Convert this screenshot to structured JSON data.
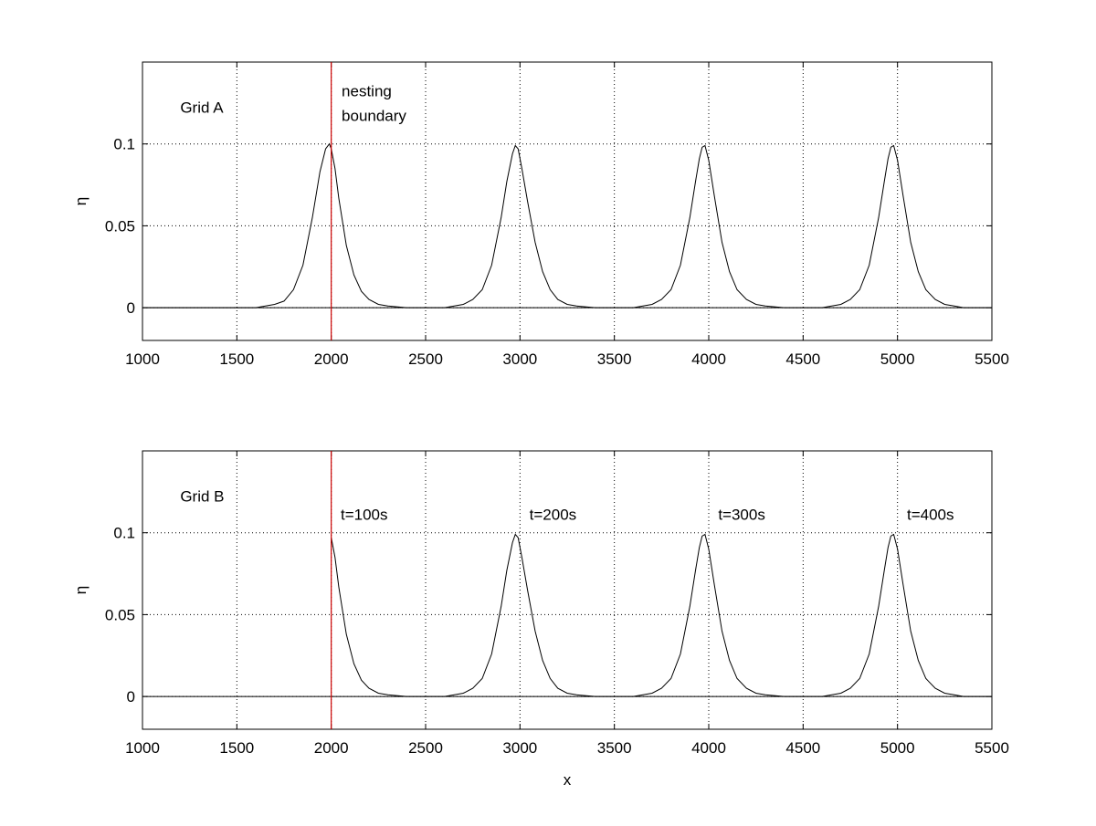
{
  "chart_data": [
    {
      "type": "line",
      "panel": "top",
      "title": "",
      "xlabel": "",
      "ylabel": "η",
      "xlim": [
        1000,
        5500
      ],
      "ylim": [
        -0.02,
        0.15
      ],
      "xticks": [
        1000,
        1500,
        2000,
        2500,
        3000,
        3500,
        4000,
        4500,
        5000,
        5500
      ],
      "xtick_labels": [
        "1000",
        "1500",
        "2000",
        "2500",
        "3000",
        "3500",
        "4000",
        "4500",
        "5000",
        "5500"
      ],
      "yticks": [
        0,
        0.05,
        0.1
      ],
      "ytick_labels": [
        "0",
        "0.05",
        "0.1"
      ],
      "grid": true,
      "line_color": "#000000",
      "boundary": {
        "x": 2000,
        "color": "#cc0000"
      },
      "annotations": [
        {
          "text": "Grid A",
          "x": 1200,
          "y": 0.119
        },
        {
          "text": "nesting",
          "x": 2055,
          "y": 0.129
        },
        {
          "text": "boundary",
          "x": 2055,
          "y": 0.114
        }
      ],
      "series": [
        {
          "x": [
            1000,
            1600,
            1700,
            1750,
            1800,
            1850,
            1900,
            1940,
            1970,
            1990,
            2000,
            2020,
            2040,
            2080,
            2120,
            2160,
            2200,
            2250,
            2300,
            2400,
            2600,
            2700,
            2750,
            2800,
            2850,
            2900,
            2930,
            2960,
            2975,
            2990,
            3010,
            3040,
            3080,
            3120,
            3160,
            3200,
            3250,
            3300,
            3400,
            3600,
            3700,
            3750,
            3800,
            3850,
            3900,
            3930,
            3950,
            3965,
            3980,
            4000,
            4030,
            4070,
            4110,
            4150,
            4200,
            4250,
            4300,
            4400,
            4600,
            4700,
            4750,
            4800,
            4850,
            4900,
            4930,
            4950,
            4965,
            4980,
            5000,
            5030,
            5070,
            5110,
            5150,
            5200,
            5250,
            5300,
            5350,
            5500
          ],
          "y": [
            0,
            0,
            0.002,
            0.004,
            0.011,
            0.026,
            0.055,
            0.083,
            0.097,
            0.1,
            0.097,
            0.085,
            0.067,
            0.038,
            0.02,
            0.01,
            0.005,
            0.002,
            0.001,
            0,
            0,
            0.002,
            0.005,
            0.011,
            0.026,
            0.055,
            0.077,
            0.094,
            0.099,
            0.097,
            0.085,
            0.065,
            0.04,
            0.022,
            0.011,
            0.005,
            0.002,
            0.001,
            0,
            0,
            0.002,
            0.005,
            0.011,
            0.026,
            0.055,
            0.077,
            0.091,
            0.098,
            0.099,
            0.09,
            0.068,
            0.04,
            0.022,
            0.011,
            0.005,
            0.002,
            0.001,
            0,
            0,
            0.002,
            0.005,
            0.011,
            0.026,
            0.055,
            0.077,
            0.091,
            0.098,
            0.099,
            0.09,
            0.068,
            0.04,
            0.022,
            0.011,
            0.005,
            0.002,
            0.001,
            0,
            0
          ]
        }
      ]
    },
    {
      "type": "line",
      "panel": "bottom",
      "title": "",
      "xlabel": "x",
      "ylabel": "η",
      "xlim": [
        1000,
        5500
      ],
      "ylim": [
        -0.02,
        0.15
      ],
      "xticks": [
        1000,
        1500,
        2000,
        2500,
        3000,
        3500,
        4000,
        4500,
        5000,
        5500
      ],
      "xtick_labels": [
        "1000",
        "1500",
        "2000",
        "2500",
        "3000",
        "3500",
        "4000",
        "4500",
        "5000",
        "5500"
      ],
      "yticks": [
        0,
        0.05,
        0.1
      ],
      "ytick_labels": [
        "0",
        "0.05",
        "0.1"
      ],
      "grid": true,
      "line_color": "#000000",
      "boundary": {
        "x": 2000,
        "color": "#cc0000"
      },
      "annotations": [
        {
          "text": "Grid B",
          "x": 1200,
          "y": 0.119
        },
        {
          "text": "t=100s",
          "x": 2050,
          "y": 0.108
        },
        {
          "text": "t=200s",
          "x": 3050,
          "y": 0.108
        },
        {
          "text": "t=300s",
          "x": 4050,
          "y": 0.108
        },
        {
          "text": "t=400s",
          "x": 5050,
          "y": 0.108
        }
      ],
      "series": [
        {
          "x": [
            2000,
            2020,
            2040,
            2080,
            2120,
            2160,
            2200,
            2250,
            2300,
            2400,
            2600,
            2700,
            2750,
            2800,
            2850,
            2900,
            2930,
            2960,
            2975,
            2990,
            3010,
            3040,
            3080,
            3120,
            3160,
            3200,
            3250,
            3300,
            3400,
            3600,
            3700,
            3750,
            3800,
            3850,
            3900,
            3930,
            3950,
            3965,
            3980,
            4000,
            4030,
            4070,
            4110,
            4150,
            4200,
            4250,
            4300,
            4400,
            4600,
            4700,
            4750,
            4800,
            4850,
            4900,
            4930,
            4950,
            4965,
            4980,
            5000,
            5030,
            5070,
            5110,
            5150,
            5200,
            5250,
            5300,
            5350,
            5500
          ],
          "y": [
            0.097,
            0.085,
            0.067,
            0.038,
            0.02,
            0.01,
            0.005,
            0.002,
            0.001,
            0,
            0,
            0.002,
            0.005,
            0.011,
            0.026,
            0.055,
            0.077,
            0.094,
            0.099,
            0.097,
            0.085,
            0.065,
            0.04,
            0.022,
            0.011,
            0.005,
            0.002,
            0.001,
            0,
            0,
            0.002,
            0.005,
            0.011,
            0.026,
            0.055,
            0.077,
            0.091,
            0.098,
            0.099,
            0.09,
            0.068,
            0.04,
            0.022,
            0.011,
            0.005,
            0.002,
            0.001,
            0,
            0,
            0.002,
            0.005,
            0.011,
            0.026,
            0.055,
            0.077,
            0.091,
            0.098,
            0.099,
            0.09,
            0.068,
            0.04,
            0.022,
            0.011,
            0.005,
            0.002,
            0.001,
            0,
            0
          ]
        }
      ]
    }
  ]
}
